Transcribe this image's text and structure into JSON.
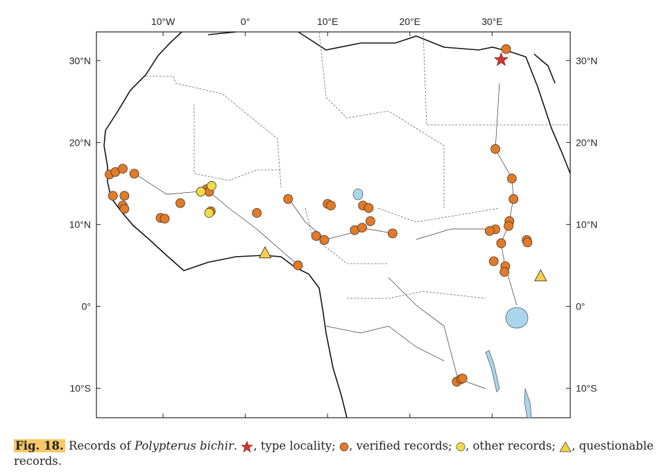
{
  "map": {
    "lon_range": [
      -18.1,
      39.5
    ],
    "lat_range": [
      -13.6,
      33.5
    ],
    "lon_ticks": [
      {
        "value": -10,
        "label": "10°W"
      },
      {
        "value": 0,
        "label": "0°"
      },
      {
        "value": 10,
        "label": "10°E"
      },
      {
        "value": 20,
        "label": "20°E"
      },
      {
        "value": 30,
        "label": "30°E"
      }
    ],
    "lat_ticks": [
      {
        "value": 30,
        "label": "30°N"
      },
      {
        "value": 20,
        "label": "20°N"
      },
      {
        "value": 10,
        "label": "10°N"
      },
      {
        "value": 0,
        "label": "0°"
      },
      {
        "value": -10,
        "label": "10°S"
      }
    ],
    "colors": {
      "verified": "#e07b2a",
      "other": "#f2dc45",
      "questionable": "#f5d04a",
      "type_locality": "#d2382b",
      "lake": "#a9d6ec"
    },
    "type_locality": [
      {
        "lon": 31.1,
        "lat": 30.1
      }
    ],
    "verified_records": [
      {
        "lon": -16.5,
        "lat": 16.1
      },
      {
        "lon": -15.8,
        "lat": 16.4
      },
      {
        "lon": -14.9,
        "lat": 16.8
      },
      {
        "lon": -13.5,
        "lat": 16.2
      },
      {
        "lon": -16.1,
        "lat": 13.5
      },
      {
        "lon": -14.7,
        "lat": 13.5
      },
      {
        "lon": -14.9,
        "lat": 12.3
      },
      {
        "lon": -14.7,
        "lat": 11.9
      },
      {
        "lon": -7.9,
        "lat": 12.6
      },
      {
        "lon": -10.3,
        "lat": 10.8
      },
      {
        "lon": -9.8,
        "lat": 10.7
      },
      {
        "lon": -4.7,
        "lat": 14.3
      },
      {
        "lon": -4.4,
        "lat": 14.0
      },
      {
        "lon": -4.2,
        "lat": 11.6
      },
      {
        "lon": 1.4,
        "lat": 11.4
      },
      {
        "lon": 5.2,
        "lat": 13.1
      },
      {
        "lon": 10.0,
        "lat": 12.5
      },
      {
        "lon": 10.4,
        "lat": 12.3
      },
      {
        "lon": 14.3,
        "lat": 12.3
      },
      {
        "lon": 15.0,
        "lat": 12.0
      },
      {
        "lon": 15.2,
        "lat": 10.4
      },
      {
        "lon": 13.3,
        "lat": 9.3
      },
      {
        "lon": 14.2,
        "lat": 9.6
      },
      {
        "lon": 8.6,
        "lat": 8.6
      },
      {
        "lon": 9.6,
        "lat": 8.1
      },
      {
        "lon": 17.9,
        "lat": 8.9
      },
      {
        "lon": 6.4,
        "lat": 5.0
      },
      {
        "lon": 30.4,
        "lat": 19.2
      },
      {
        "lon": 32.4,
        "lat": 15.6
      },
      {
        "lon": 32.6,
        "lat": 13.1
      },
      {
        "lon": 32.1,
        "lat": 10.4
      },
      {
        "lon": 32.0,
        "lat": 9.8
      },
      {
        "lon": 30.4,
        "lat": 9.4
      },
      {
        "lon": 29.7,
        "lat": 9.2
      },
      {
        "lon": 31.1,
        "lat": 7.7
      },
      {
        "lon": 34.2,
        "lat": 8.1
      },
      {
        "lon": 34.3,
        "lat": 7.8
      },
      {
        "lon": 30.2,
        "lat": 5.5
      },
      {
        "lon": 31.6,
        "lat": 4.9
      },
      {
        "lon": 31.5,
        "lat": 4.2
      },
      {
        "lon": 25.7,
        "lat": -9.2
      },
      {
        "lon": 26.2,
        "lat": -8.9
      },
      {
        "lon": 26.4,
        "lat": -8.8
      },
      {
        "lon": 31.7,
        "lat": 31.4
      }
    ],
    "other_records": [
      {
        "lon": -5.4,
        "lat": 14.0
      },
      {
        "lon": -4.1,
        "lat": 14.7
      },
      {
        "lon": -4.4,
        "lat": 11.4
      }
    ],
    "questionable_records": [
      {
        "lon": 2.4,
        "lat": 6.5
      },
      {
        "lon": 35.9,
        "lat": 3.7
      }
    ]
  },
  "caption": {
    "fig_label": "Fig. 18.",
    "text_pre": " Records of ",
    "species": "Polypterus bichir",
    "text_post": ". ",
    "type_locality": ", type locality; ",
    "verified": ", verified records; ",
    "other": ", other records; ",
    "questionable": ", questionable records."
  }
}
